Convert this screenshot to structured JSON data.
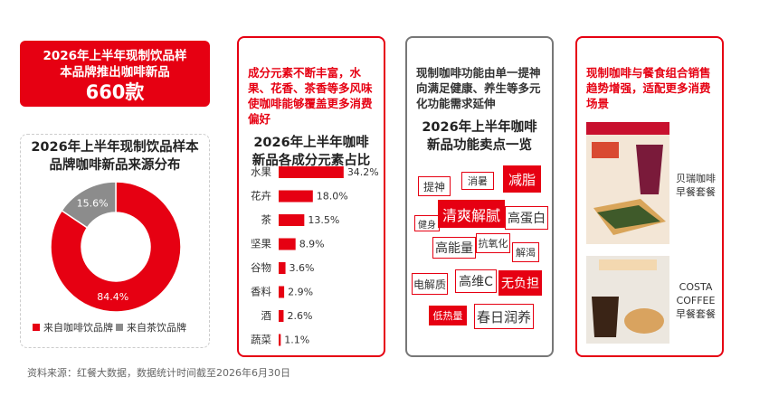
{
  "header": {
    "title": "2026年上半年现制饮品样本品牌推出咖啡新品",
    "value": "660款"
  },
  "chart_data": [
    {
      "type": "donut",
      "title": "2026年上半年现制饮品样本品牌咖啡新品来源分布",
      "categories": [
        "来自咖啡饮品牌",
        "来自茶饮品牌"
      ],
      "values": [
        84.4,
        15.6
      ],
      "value_labels": [
        "84.4%",
        "15.6%"
      ],
      "colors": [
        "#e60012",
        "#8c8c8c"
      ],
      "legend": "bottom"
    },
    {
      "type": "bar",
      "title": "2026年上半年咖啡新品各成分元素占比",
      "categories": [
        "水果",
        "花卉",
        "茶",
        "坚果",
        "谷物",
        "香料",
        "酒",
        "蔬菜"
      ],
      "values": [
        34.2,
        18.0,
        13.5,
        8.9,
        3.6,
        2.9,
        2.6,
        1.1
      ],
      "value_labels": [
        "34.2%",
        "18.0%",
        "13.5%",
        "8.9%",
        "3.6%",
        "2.9%",
        "2.6%",
        "1.1%"
      ],
      "color": "#e60012"
    }
  ],
  "panels": [
    {
      "note": "成分元素不断丰富，水果、花香、茶香等多风味使咖啡能够覆盖更多消费偏好"
    },
    {
      "note": "现制咖啡功能由单一提神向满足健康、养生等多元化功能需求延伸",
      "title": "2026年上半年咖啡新品功能卖点一览",
      "tags": [
        {
          "text": "提神",
          "highlight": false
        },
        {
          "text": "消暑",
          "highlight": false
        },
        {
          "text": "减脂",
          "highlight": true
        },
        {
          "text": "健身",
          "highlight": false
        },
        {
          "text": "清爽解腻",
          "highlight": true
        },
        {
          "text": "高蛋白",
          "highlight": false
        },
        {
          "text": "高能量",
          "highlight": false
        },
        {
          "text": "抗氧化",
          "highlight": false
        },
        {
          "text": "解渴",
          "highlight": false
        },
        {
          "text": "电解质",
          "highlight": false
        },
        {
          "text": "高维C",
          "highlight": false
        },
        {
          "text": "无负担",
          "highlight": true
        },
        {
          "text": "低热量",
          "highlight": true
        },
        {
          "text": "春日润养",
          "highlight": false
        }
      ]
    },
    {
      "note": "现制咖啡与餐食组合销售趋势增强，适配更多消费场景",
      "images": [
        {
          "caption": [
            "贝瑞咖啡",
            "早餐套餐"
          ]
        },
        {
          "caption": [
            "COSTA",
            "COFFEE",
            "早餐套餐"
          ]
        }
      ]
    }
  ],
  "source": "资料来源：红餐大数据，数据统计时间截至2026年6月30日"
}
